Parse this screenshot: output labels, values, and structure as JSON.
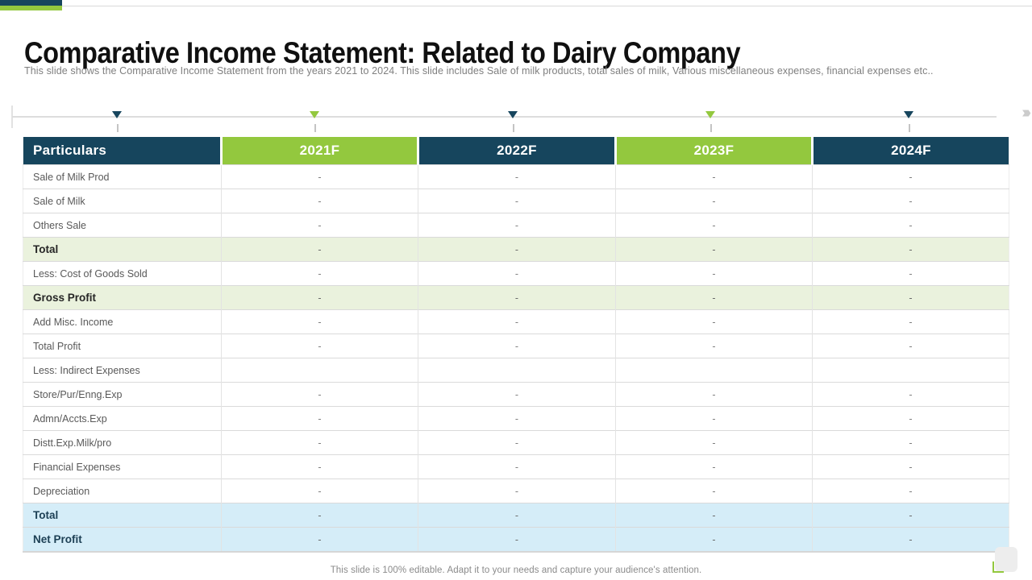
{
  "slide": {
    "title": "Comparative Income Statement: Related to Dairy Company",
    "subtitle": "This slide shows the Comparative Income Statement from the years 2021 to  2024. This slide includes Sale of milk products, total sales of milk, Various miscellaneous expenses, financial expenses etc..",
    "footer": "This slide is 100% editable.  Adapt it to your needs and capture your audience's attention."
  },
  "colors": {
    "navy": "#16455d",
    "green": "#93c83e",
    "light_green_row": "#eaf2dd",
    "light_blue_row": "#d5edf8"
  },
  "icons": {
    "timeline_arrow": "››››"
  },
  "timeline": {
    "markers": [
      {
        "color": "navy"
      },
      {
        "color": "green"
      },
      {
        "color": "navy"
      },
      {
        "color": "green"
      },
      {
        "color": "navy"
      }
    ]
  },
  "table": {
    "columns": [
      "Particulars",
      "2021F",
      "2022F",
      "2023F",
      "2024F"
    ],
    "header_colors": [
      "navy",
      "green",
      "navy",
      "green",
      "navy"
    ],
    "rows": [
      {
        "label": "Sale of Milk Prod",
        "values": [
          "-",
          "-",
          "-",
          "-"
        ],
        "style": "normal"
      },
      {
        "label": "Sale of Milk",
        "values": [
          "-",
          "-",
          "-",
          "-"
        ],
        "style": "normal"
      },
      {
        "label": "Others Sale",
        "values": [
          "-",
          "-",
          "-",
          "-"
        ],
        "style": "normal"
      },
      {
        "label": "Total",
        "values": [
          "-",
          "-",
          "-",
          "-"
        ],
        "style": "green"
      },
      {
        "label": "Less: Cost of Goods Sold",
        "values": [
          "-",
          "-",
          "-",
          "-"
        ],
        "style": "normal"
      },
      {
        "label": "Gross Profit",
        "values": [
          "-",
          "-",
          "-",
          "-"
        ],
        "style": "green"
      },
      {
        "label": "Add Misc. Income",
        "values": [
          "-",
          "-",
          "-",
          "-"
        ],
        "style": "normal"
      },
      {
        "label": "Total Profit",
        "values": [
          "-",
          "-",
          "-",
          "-"
        ],
        "style": "normal"
      },
      {
        "label": "Less: Indirect Expenses",
        "values": [
          "",
          "",
          "",
          ""
        ],
        "style": "normal"
      },
      {
        "label": "Store/Pur/Enng.Exp",
        "values": [
          "-",
          "-",
          "-",
          "-"
        ],
        "style": "normal"
      },
      {
        "label": "Admn/Accts.Exp",
        "values": [
          "-",
          "-",
          "-",
          "-"
        ],
        "style": "normal"
      },
      {
        "label": "Distt.Exp.Milk/pro",
        "values": [
          "-",
          "-",
          "-",
          "-"
        ],
        "style": "normal"
      },
      {
        "label": "Financial Expenses",
        "values": [
          "-",
          "-",
          "-",
          "-"
        ],
        "style": "normal"
      },
      {
        "label": "Depreciation",
        "values": [
          "-",
          "-",
          "-",
          "-"
        ],
        "style": "normal"
      },
      {
        "label": "Total",
        "values": [
          "-",
          "-",
          "-",
          "-"
        ],
        "style": "blue"
      },
      {
        "label": "Net Profit",
        "values": [
          "-",
          "-",
          "-",
          "-"
        ],
        "style": "blue"
      }
    ]
  }
}
